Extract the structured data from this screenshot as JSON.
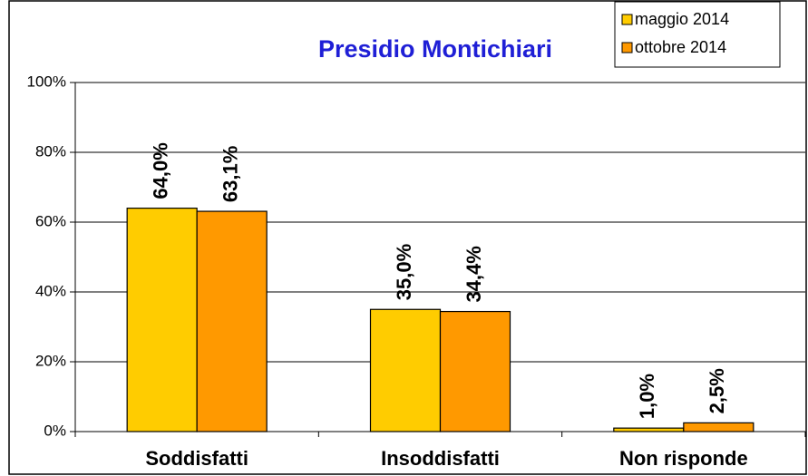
{
  "chart_data": {
    "type": "bar",
    "title": "Presidio Montichiari",
    "categories": [
      "Soddisfatti",
      "Insoddisfatti",
      "Non risponde"
    ],
    "series": [
      {
        "name": "maggio 2014",
        "color": "#FFCC00",
        "values": [
          64.0,
          35.0,
          1.0
        ],
        "value_labels": [
          "64,0%",
          "35,0%",
          "1,0%"
        ]
      },
      {
        "name": "ottobre 2014",
        "color": "#FF9900",
        "values": [
          63.1,
          34.4,
          2.5
        ],
        "value_labels": [
          "63,1%",
          "34,4%",
          "2,5%"
        ]
      }
    ],
    "ylim": [
      0,
      100
    ],
    "yticks": [
      {
        "value": 0,
        "label": "0%"
      },
      {
        "value": 20,
        "label": "20%"
      },
      {
        "value": 40,
        "label": "40%"
      },
      {
        "value": 60,
        "label": "60%"
      },
      {
        "value": 80,
        "label": "80%"
      },
      {
        "value": 100,
        "label": "100%"
      }
    ],
    "legend": "top-right"
  }
}
